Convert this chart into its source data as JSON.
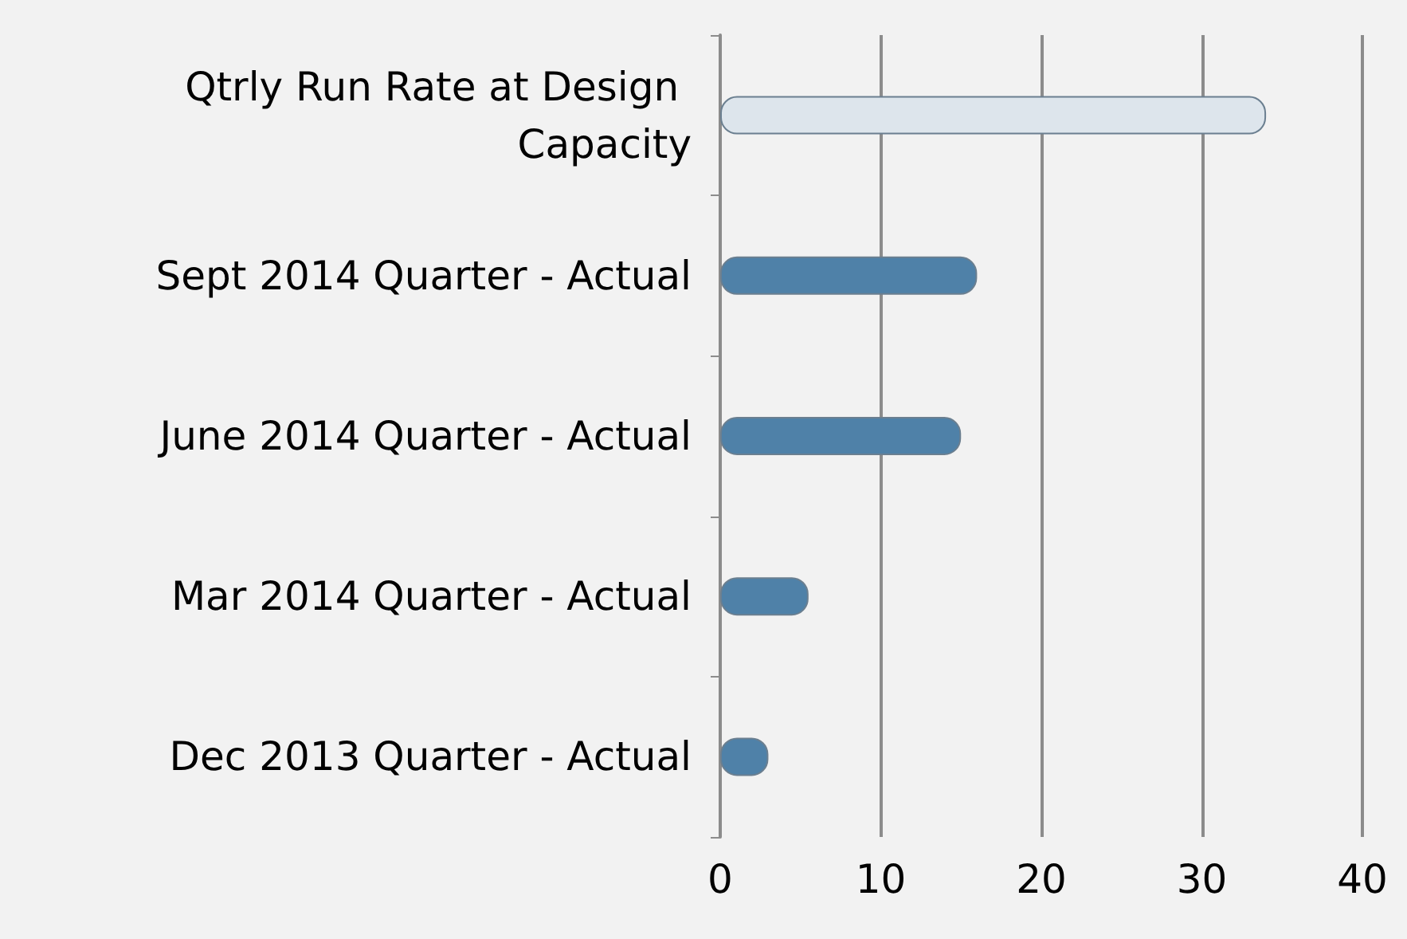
{
  "chart_data": {
    "type": "bar",
    "orientation": "horizontal",
    "categories": [
      "Qtrly Run Rate at Design Capacity",
      "Sept 2014 Quarter - Actual",
      "June 2014 Quarter - Actual",
      "Mar 2014 Quarter - Actual",
      "Dec 2013 Quarter - Actual"
    ],
    "values": [
      34,
      16,
      15,
      5.5,
      3
    ],
    "colors": [
      "#dde5ec",
      "#4f81a8",
      "#4f81a8",
      "#4f81a8",
      "#4f81a8"
    ],
    "xlim": [
      0,
      40
    ],
    "xticks": [
      0,
      10,
      20,
      30,
      40
    ],
    "grid": "x"
  }
}
